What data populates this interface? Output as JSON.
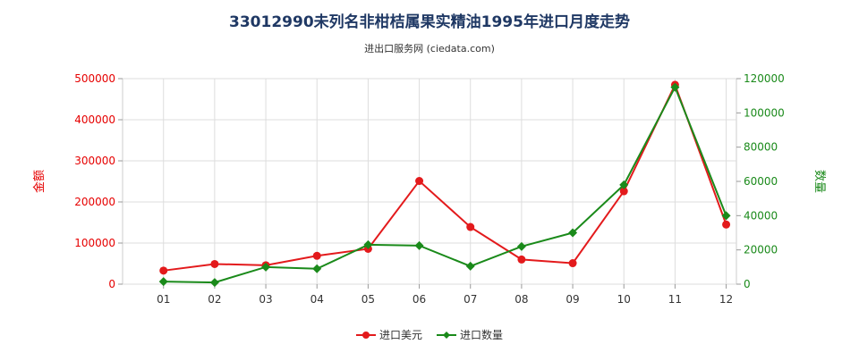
{
  "chart_data": {
    "type": "line",
    "title": "33012990未列名非柑桔属果实精油1995年进口月度走势",
    "subtitle": "进出口服务网 (ciedata.com)",
    "categories": [
      "01",
      "02",
      "03",
      "04",
      "05",
      "06",
      "07",
      "08",
      "09",
      "10",
      "11",
      "12"
    ],
    "y_left": {
      "label": "金额",
      "ticks": [
        "0",
        "100000",
        "200000",
        "300000",
        "400000",
        "500000"
      ],
      "range": [
        0,
        500000
      ],
      "color": "#e60000"
    },
    "y_right": {
      "label": "数量",
      "ticks": [
        "0",
        "20000",
        "40000",
        "60000",
        "80000",
        "100000",
        "120000"
      ],
      "range": [
        0,
        120000
      ],
      "color": "#1a8a1a"
    },
    "series": [
      {
        "name": "进口美元",
        "axis": "left",
        "color": "#e31a1c",
        "values": [
          33000,
          49000,
          46000,
          69000,
          86000,
          251000,
          139000,
          60000,
          51000,
          226000,
          485000,
          145000
        ]
      },
      {
        "name": "进口数量",
        "axis": "right",
        "color": "#1a8a1a",
        "values": [
          1500,
          1000,
          10000,
          9000,
          23000,
          22500,
          10500,
          22000,
          30000,
          58000,
          115000,
          40000
        ]
      }
    ],
    "grid": true,
    "legend_position": "bottom-center"
  }
}
